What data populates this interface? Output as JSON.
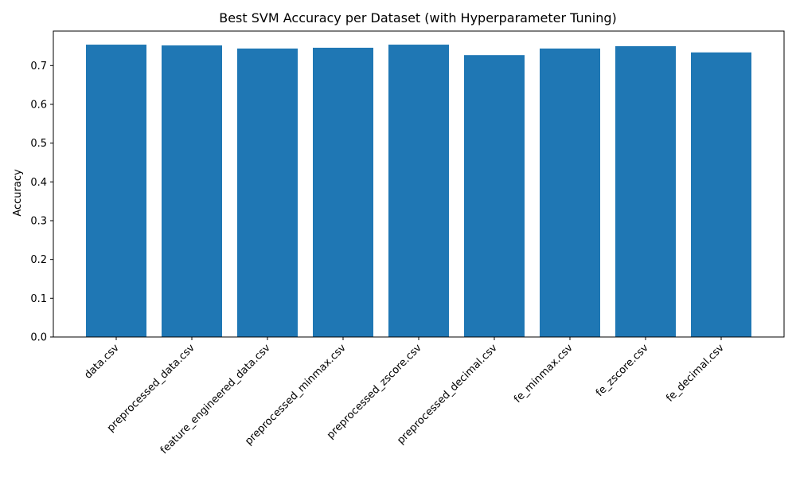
{
  "chart_data": {
    "type": "bar",
    "title": "Best SVM Accuracy per Dataset (with Hyperparameter Tuning)",
    "xlabel": "",
    "ylabel": "Accuracy",
    "categories": [
      "data.csv",
      "preprocessed_data.csv",
      "feature_engineered_data.csv",
      "preprocessed_minmax.csv",
      "preprocessed_zscore.csv",
      "preprocessed_decimal.csv",
      "fe_minmax.csv",
      "fe_zscore.csv",
      "fe_decimal.csv"
    ],
    "values": [
      0.754,
      0.752,
      0.744,
      0.746,
      0.754,
      0.727,
      0.744,
      0.75,
      0.734
    ],
    "ylim": [
      0,
      0.789
    ],
    "yticks": [
      0.0,
      0.1,
      0.2,
      0.3,
      0.4,
      0.5,
      0.6,
      0.7
    ],
    "ytick_labels": [
      "0.0",
      "0.1",
      "0.2",
      "0.3",
      "0.4",
      "0.5",
      "0.6",
      "0.7"
    ],
    "bar_color": "#1f77b4",
    "grid": false,
    "legend": "none"
  }
}
